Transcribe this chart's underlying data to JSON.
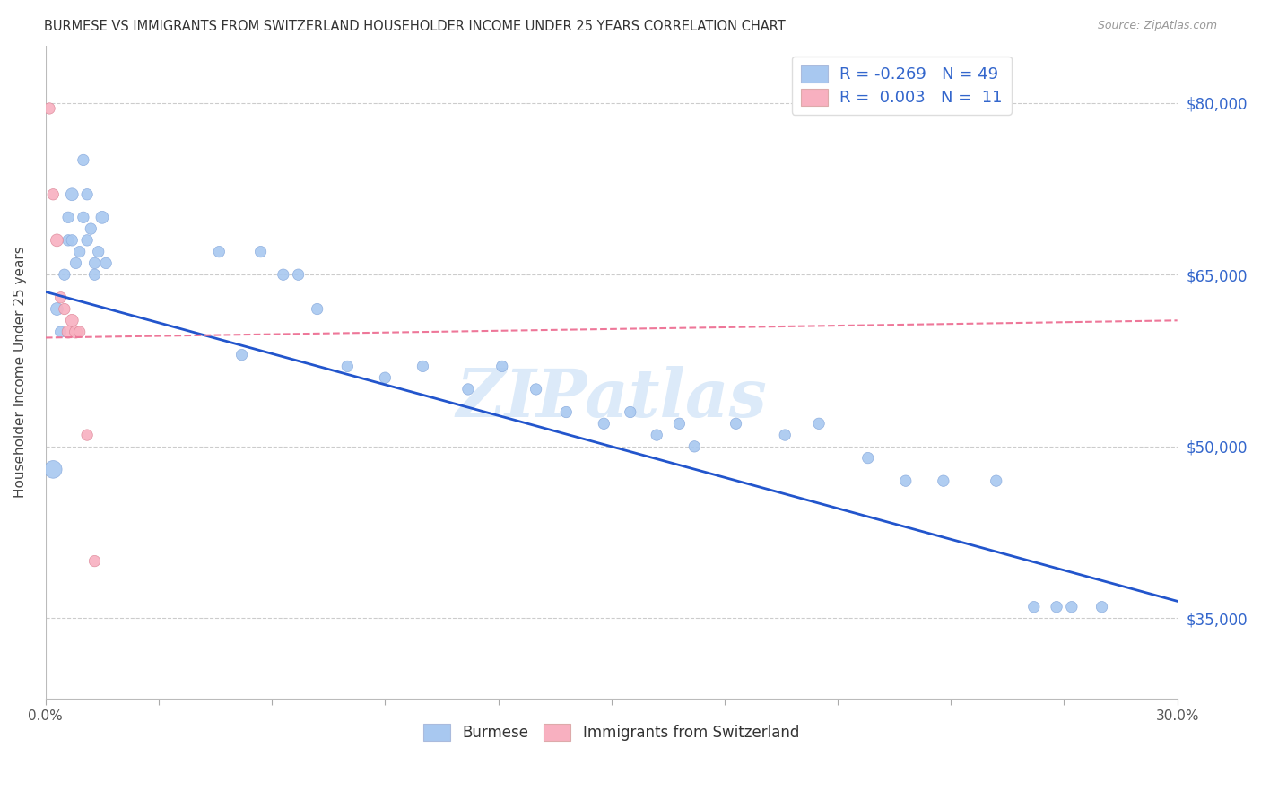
{
  "title": "BURMESE VS IMMIGRANTS FROM SWITZERLAND HOUSEHOLDER INCOME UNDER 25 YEARS CORRELATION CHART",
  "source": "Source: ZipAtlas.com",
  "ylabel": "Householder Income Under 25 years",
  "xlim": [
    0.0,
    0.3
  ],
  "ylim": [
    28000,
    85000
  ],
  "ytick_labels": [
    "$35,000",
    "$50,000",
    "$65,000",
    "$80,000"
  ],
  "ytick_values": [
    35000,
    50000,
    65000,
    80000
  ],
  "watermark": "ZIPatlas",
  "legend_blue_r": "-0.269",
  "legend_blue_n": "49",
  "legend_pink_r": "0.003",
  "legend_pink_n": "11",
  "blue_color": "#a8c8f0",
  "pink_color": "#f8b0c0",
  "blue_line_color": "#2255cc",
  "pink_line_color": "#ee7799",
  "burmese_x": [
    0.002,
    0.003,
    0.004,
    0.005,
    0.006,
    0.006,
    0.007,
    0.007,
    0.008,
    0.009,
    0.01,
    0.01,
    0.011,
    0.011,
    0.012,
    0.013,
    0.013,
    0.014,
    0.015,
    0.016,
    0.046,
    0.052,
    0.057,
    0.063,
    0.067,
    0.072,
    0.08,
    0.09,
    0.1,
    0.112,
    0.121,
    0.13,
    0.138,
    0.148,
    0.155,
    0.162,
    0.168,
    0.172,
    0.183,
    0.196,
    0.205,
    0.218,
    0.228,
    0.238,
    0.252,
    0.262,
    0.268,
    0.272,
    0.28
  ],
  "burmese_y": [
    48000,
    62000,
    60000,
    65000,
    70000,
    68000,
    72000,
    68000,
    66000,
    67000,
    70000,
    75000,
    68000,
    72000,
    69000,
    65000,
    66000,
    67000,
    70000,
    66000,
    67000,
    58000,
    67000,
    65000,
    65000,
    62000,
    57000,
    56000,
    57000,
    55000,
    57000,
    55000,
    53000,
    52000,
    53000,
    51000,
    52000,
    50000,
    52000,
    51000,
    52000,
    49000,
    47000,
    47000,
    47000,
    36000,
    36000,
    36000,
    36000
  ],
  "burmese_size": [
    200,
    100,
    80,
    80,
    80,
    80,
    100,
    80,
    80,
    80,
    80,
    80,
    80,
    80,
    80,
    80,
    80,
    80,
    100,
    80,
    80,
    80,
    80,
    80,
    80,
    80,
    80,
    80,
    80,
    80,
    80,
    80,
    80,
    80,
    80,
    80,
    80,
    80,
    80,
    80,
    80,
    80,
    80,
    80,
    80,
    80,
    80,
    80,
    80
  ],
  "swiss_x": [
    0.001,
    0.002,
    0.003,
    0.004,
    0.005,
    0.006,
    0.007,
    0.008,
    0.009,
    0.011,
    0.013
  ],
  "swiss_y": [
    79500,
    72000,
    68000,
    63000,
    62000,
    60000,
    61000,
    60000,
    60000,
    51000,
    40000
  ],
  "swiss_size": [
    80,
    80,
    100,
    80,
    80,
    100,
    100,
    100,
    80,
    80,
    80
  ],
  "blue_intercept": 63500,
  "blue_slope": -90000,
  "pink_intercept": 59500,
  "pink_slope": 5000
}
